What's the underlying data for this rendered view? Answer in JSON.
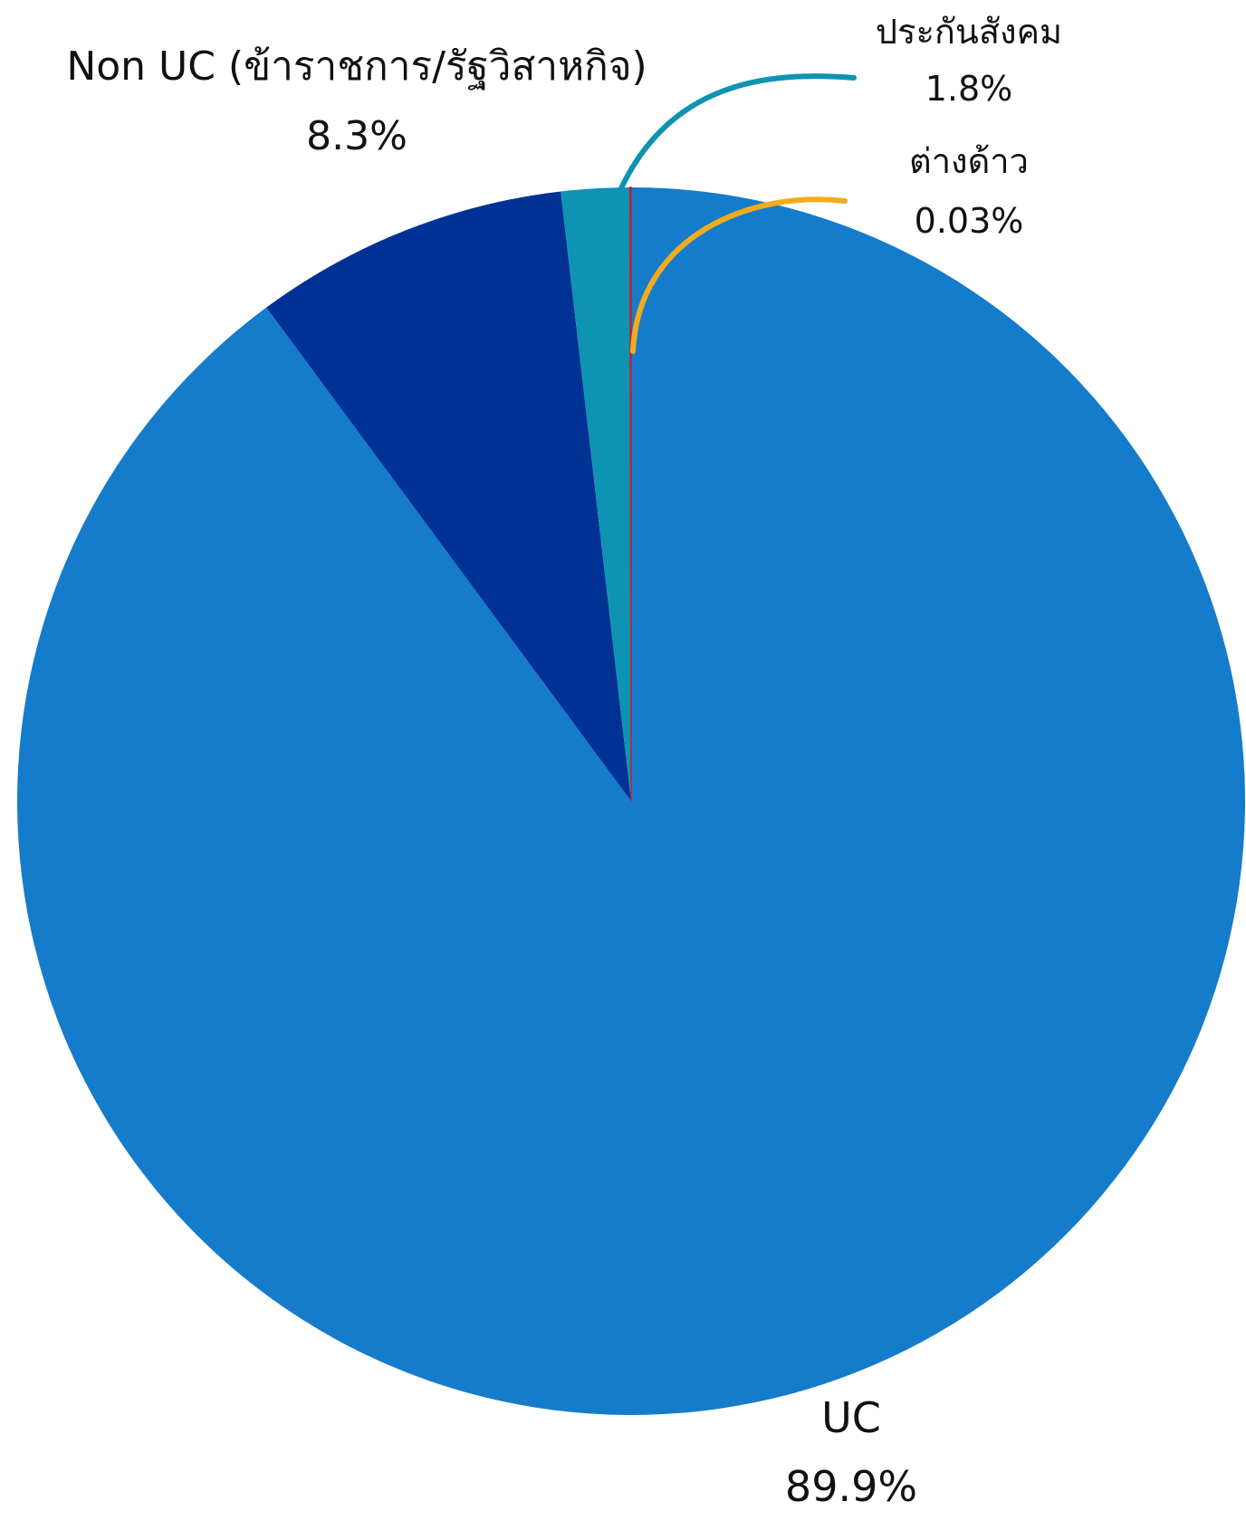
{
  "chart_data": {
    "type": "pie",
    "slices": [
      {
        "label": "UC",
        "value": 89.9,
        "value_label": "89.9%",
        "color": "#147CCB"
      },
      {
        "label": "Non UC (ข้าราชการ/รัฐวิสาหกิจ)",
        "value": 8.3,
        "value_label": "8.3%",
        "color": "#003296"
      },
      {
        "label": "ประกันสังคม",
        "value": 1.8,
        "value_label": "1.8%",
        "color": "#0E93B2"
      },
      {
        "label": "ต่างด้าว",
        "value": 0.03,
        "value_label": "0.03%",
        "color": "#C21F3A"
      }
    ],
    "callout_colors": {
      "ประกันสังคม": "#0E93B2",
      "ต่างด้าว": "#F2AC1B"
    },
    "legend": "none",
    "direction": "clockwise-from-top"
  }
}
